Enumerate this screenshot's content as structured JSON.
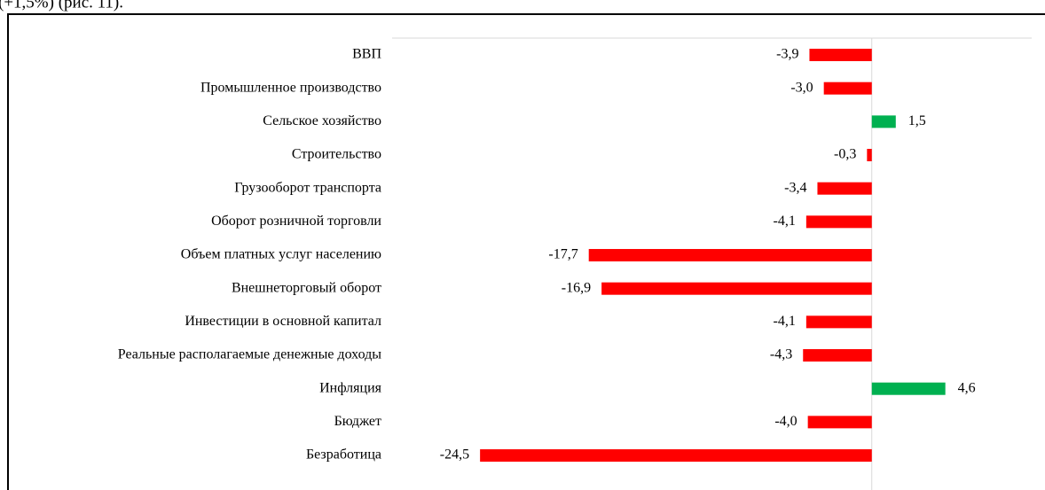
{
  "document": {
    "text": "(+1,5%) (рис. 11)."
  },
  "chart_data": {
    "type": "bar",
    "orientation": "horizontal",
    "categories": [
      "ВВП",
      "Промышленное производство",
      "Сельское хозяйство",
      "Строительство",
      "Грузооборот транспорта",
      "Оборот розничной торговли",
      "Объем платных услуг населению",
      "Внешнеторговый оборот",
      "Инвестиции в основной капитал",
      "Реальные располагаемые денежные доходы",
      "Инфляция",
      "Бюджет",
      "Безработица"
    ],
    "values": [
      -3.9,
      -3.0,
      1.5,
      -0.3,
      -3.4,
      -4.1,
      -17.7,
      -16.9,
      -4.1,
      -4.3,
      4.6,
      -4.0,
      -24.5
    ],
    "value_labels": [
      "-3,9",
      "-3,0",
      "1,5",
      "-0,3",
      "-3,4",
      "-4,1",
      "-17,7",
      "-16,9",
      "-4,1",
      "-4,3",
      "4,6",
      "-4,0",
      "-24,5"
    ],
    "colors": [
      "#ff0000",
      "#ff0000",
      "#00b050",
      "#ff0000",
      "#ff0000",
      "#ff0000",
      "#ff0000",
      "#ff0000",
      "#ff0000",
      "#ff0000",
      "#00b050",
      "#ff0000",
      "#ff0000"
    ],
    "xlim": [
      -30,
      10
    ]
  }
}
